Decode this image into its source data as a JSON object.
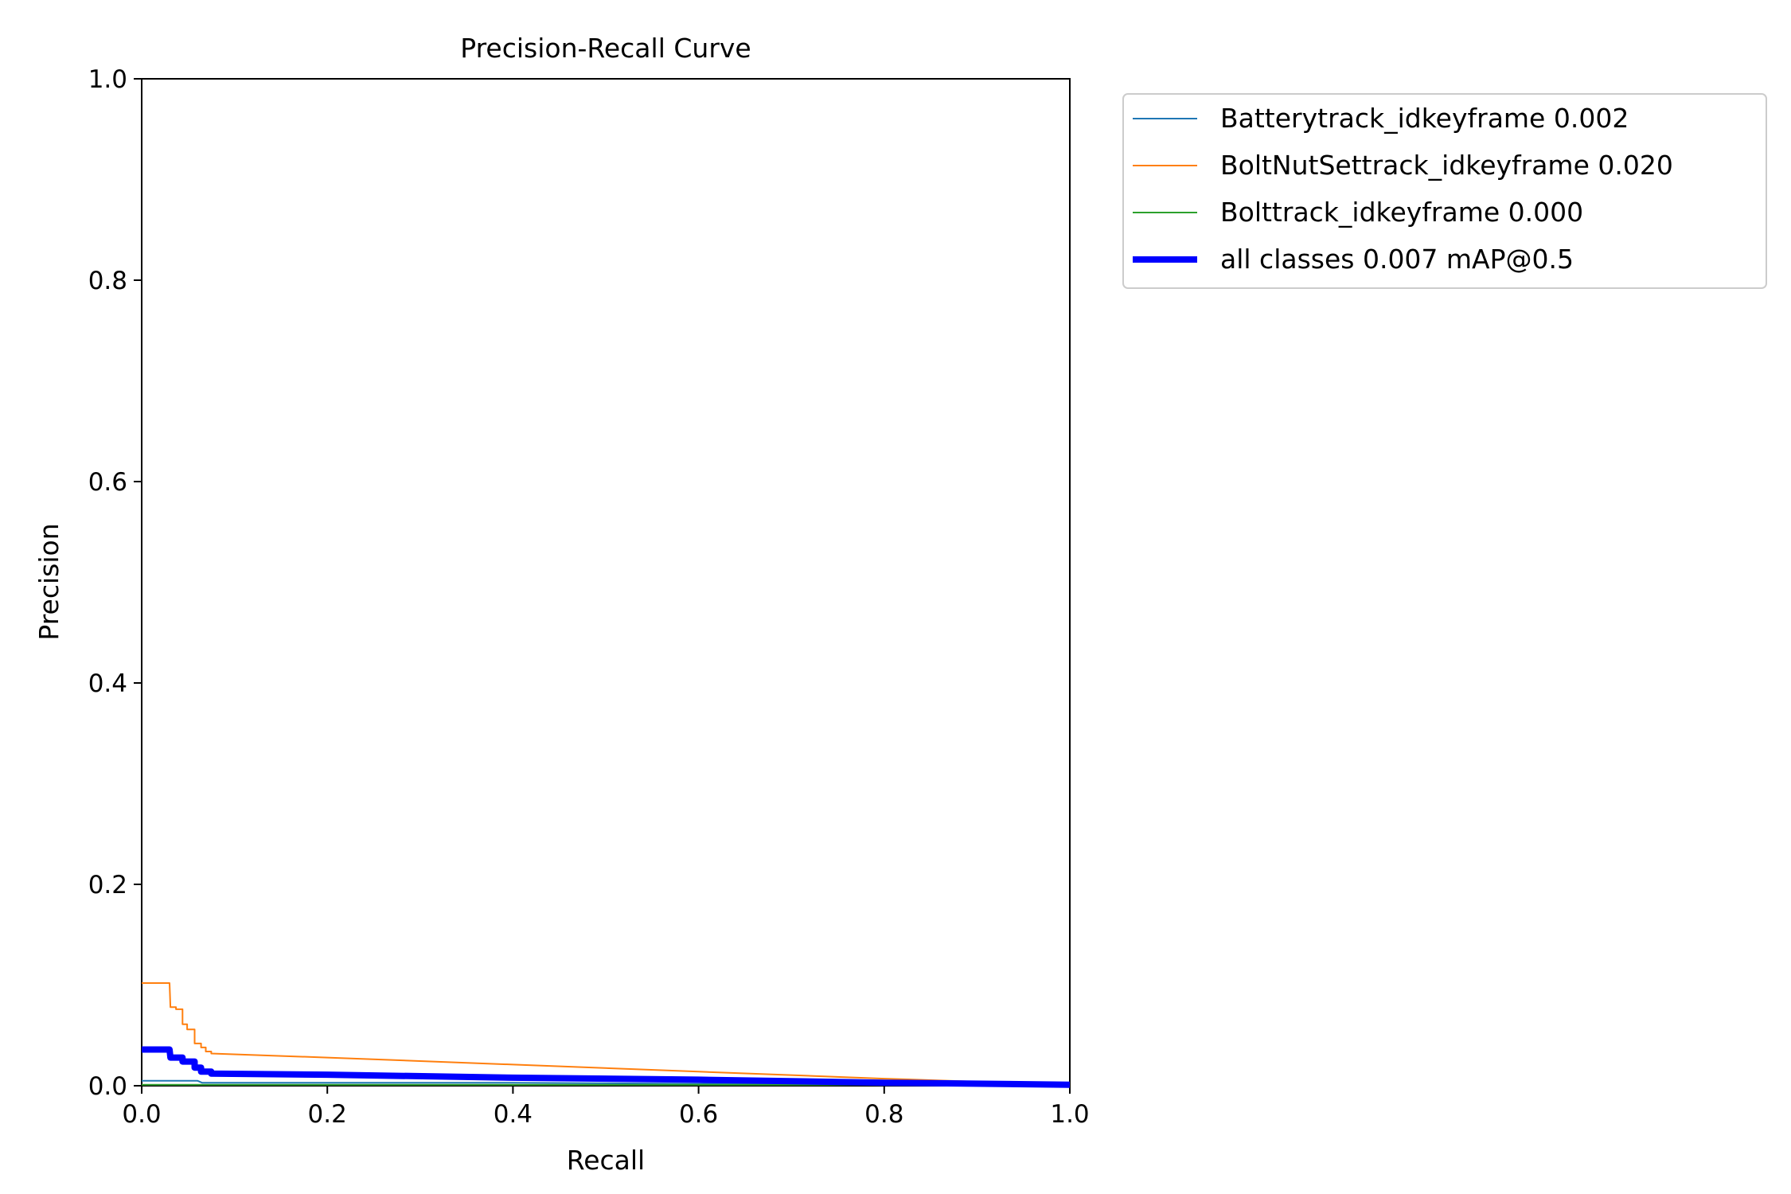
{
  "chart_data": {
    "type": "line",
    "title": "Precision-Recall Curve",
    "xlabel": "Recall",
    "ylabel": "Precision",
    "xlim": [
      0,
      1
    ],
    "ylim": [
      0,
      1
    ],
    "xticks": [
      "0.0",
      "0.2",
      "0.4",
      "0.6",
      "0.8",
      "1.0"
    ],
    "yticks": [
      "0.0",
      "0.2",
      "0.4",
      "0.6",
      "0.8",
      "1.0"
    ],
    "grid": false,
    "legend_position": "outside top-right",
    "series": [
      {
        "name": "Batterytrack_idkeyframe 0.002",
        "color": "#1f77b4",
        "x": [
          0,
          0.06,
          0.065,
          0.2,
          0.4,
          0.6,
          0.8,
          1.0
        ],
        "y": [
          0.005,
          0.005,
          0.003,
          0.003,
          0.003,
          0.002,
          0.002,
          0.001
        ]
      },
      {
        "name": "BoltNutSettrack_idkeyframe 0.020",
        "color": "#ff7f0e",
        "x": [
          0,
          0.03,
          0.031,
          0.037,
          0.037,
          0.044,
          0.044,
          0.049,
          0.049,
          0.057,
          0.057,
          0.064,
          0.064,
          0.069,
          0.069,
          0.075,
          0.075,
          0.2,
          0.4,
          0.6,
          0.8,
          1.0
        ],
        "y": [
          0.102,
          0.102,
          0.078,
          0.078,
          0.076,
          0.076,
          0.061,
          0.061,
          0.056,
          0.056,
          0.042,
          0.042,
          0.038,
          0.038,
          0.034,
          0.034,
          0.032,
          0.028,
          0.021,
          0.014,
          0.007,
          0.001
        ]
      },
      {
        "name": "Bolttrack_idkeyframe 0.000",
        "color": "#2ca02c",
        "x": [
          0,
          0.2,
          0.4,
          0.6,
          0.8,
          1.0
        ],
        "y": [
          0.001,
          0.001,
          0.001,
          0.001,
          0.001,
          0.0
        ]
      },
      {
        "name": "all classes 0.007 mAP@0.5",
        "color": "#0000ff",
        "x": [
          0,
          0.03,
          0.031,
          0.044,
          0.044,
          0.057,
          0.057,
          0.064,
          0.064,
          0.075,
          0.075,
          0.2,
          0.4,
          0.6,
          0.8,
          1.0
        ],
        "y": [
          0.036,
          0.036,
          0.028,
          0.028,
          0.024,
          0.024,
          0.018,
          0.018,
          0.014,
          0.014,
          0.012,
          0.011,
          0.008,
          0.006,
          0.003,
          0.001
        ]
      }
    ]
  }
}
